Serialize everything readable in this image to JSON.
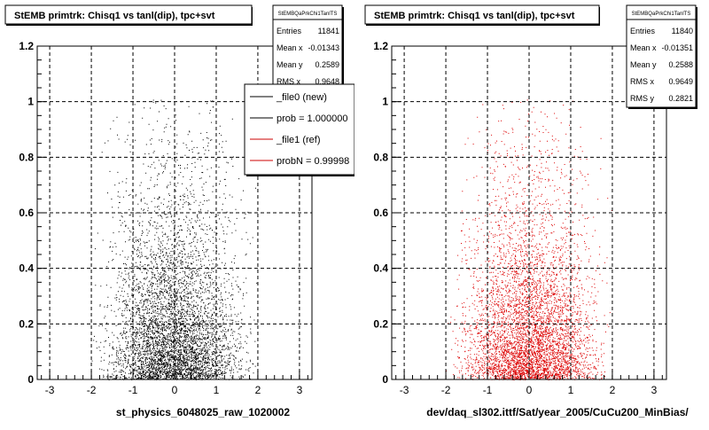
{
  "footer_note": "",
  "panels": [
    {
      "title": "StEMB primtrk: Chisq1 vs tanl(dip), tpc+svt",
      "stats": {
        "name": "StEMBQaPrkChi1TanlTS",
        "rows": [
          {
            "label": "Entries",
            "value": "11841"
          },
          {
            "label": "Mean x",
            "value": "-0.01343"
          },
          {
            "label": "Mean y",
            "value": "0.2589"
          },
          {
            "label": "RMS x",
            "value": "0.9648"
          }
        ]
      },
      "legend": [
        {
          "label": "_file0 (new)",
          "color": "#000000"
        },
        {
          "label": "prob = 1.000000",
          "color": "#000000"
        },
        {
          "label": "_file1 (ref)",
          "color": "#cc0000"
        },
        {
          "label": "probN = 0.99998",
          "color": "#cc0000"
        }
      ],
      "xlabel": "st_physics_6048025_raw_1020002",
      "point_color": "#000000"
    },
    {
      "title": "StEMB primtrk: Chisq1 vs tanl(dip), tpc+svt",
      "stats": {
        "name": "StEMBQaPrkChi1TanlTS",
        "rows": [
          {
            "label": "Entries",
            "value": "11840"
          },
          {
            "label": "Mean x",
            "value": "-0.01351"
          },
          {
            "label": "Mean y",
            "value": "0.2588"
          },
          {
            "label": "RMS x",
            "value": "0.9649"
          },
          {
            "label": "RMS y",
            "value": "0.2821"
          }
        ]
      },
      "legend": [],
      "xlabel": "dev/daq_sl302.ittf/Sat/year_2005/CuCu200_MinBias/",
      "point_color": "#dd0000"
    }
  ],
  "chart_data": [
    {
      "type": "scatter",
      "title": "StEMB primtrk: Chisq1 vs tanl(dip), tpc+svt",
      "xlabel": "st_physics_6048025_raw_1020002",
      "ylabel": "",
      "xlim": [
        -3.3,
        3.3
      ],
      "ylim": [
        0,
        1.2
      ],
      "xticks": [
        -3,
        -2,
        -1,
        0,
        1,
        2,
        3
      ],
      "yticks": [
        0,
        0.2,
        0.4,
        0.6,
        0.8,
        1,
        1.2
      ],
      "grid": true,
      "entries": 11841,
      "mean_x": -0.01343,
      "mean_y": 0.2589,
      "rms_x": 0.9648,
      "x_range": [
        -2,
        2
      ],
      "color": "#000000",
      "legend_placement": "top-right"
    },
    {
      "type": "scatter",
      "title": "StEMB primtrk: Chisq1 vs tanl(dip), tpc+svt",
      "xlabel": "dev/daq_sl302.ittf/Sat/year_2005/CuCu200_MinBias/",
      "ylabel": "",
      "xlim": [
        -3.3,
        3.3
      ],
      "ylim": [
        0,
        1.2
      ],
      "xticks": [
        -3,
        -2,
        -1,
        0,
        1,
        2,
        3
      ],
      "yticks": [
        0,
        0.2,
        0.4,
        0.6,
        0.8,
        1,
        1.2
      ],
      "grid": true,
      "entries": 11840,
      "mean_x": -0.01351,
      "mean_y": 0.2588,
      "rms_x": 0.9649,
      "rms_y": 0.2821,
      "x_range": [
        -2,
        2
      ],
      "color": "#dd0000"
    }
  ]
}
